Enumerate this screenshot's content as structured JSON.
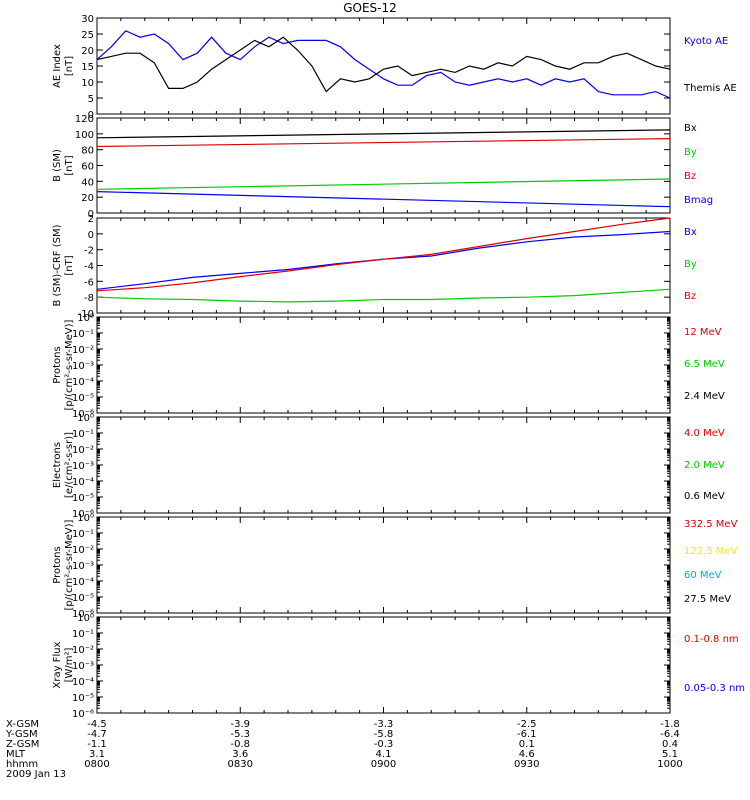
{
  "title": "GOES-12",
  "date": "2009 Jan 13",
  "colors": {
    "black": "#000000",
    "blue": "#0000ee",
    "red": "#dd0000",
    "green": "#00cc00",
    "yellow": "#eeee00",
    "cyan": "#00aaee"
  },
  "footer": {
    "rows": [
      {
        "label": "X-GSM",
        "values": [
          "-4.5",
          "-3.9",
          "-3.3",
          "-2.5",
          "-1.8"
        ]
      },
      {
        "label": "Y-GSM",
        "values": [
          "-4.7",
          "-5.3",
          "-5.8",
          "-6.1",
          "-6.4"
        ]
      },
      {
        "label": "Z-GSM",
        "values": [
          "-1.1",
          "-0.8",
          "-0.3",
          "0.1",
          "0.4"
        ]
      },
      {
        "label": "MLT",
        "values": [
          "3.1",
          "3.6",
          "4.1",
          "4.6",
          "5.1"
        ]
      },
      {
        "label": "hhmm",
        "values": [
          "0800",
          "0830",
          "0900",
          "0930",
          "1000"
        ]
      }
    ]
  },
  "chart_data": [
    {
      "type": "line",
      "ylabel": [
        "AE Index",
        "[nT]"
      ],
      "ylim": [
        0,
        30
      ],
      "yticks": [
        "0",
        "5",
        "10",
        "15",
        "20",
        "25",
        "30"
      ],
      "xlim": [
        0,
        120
      ],
      "series": [
        {
          "name": "Kyoto AE",
          "color": "blue",
          "x": [
            0,
            3,
            6,
            9,
            12,
            15,
            18,
            21,
            24,
            27,
            30,
            33,
            36,
            39,
            42,
            45,
            48,
            51,
            54,
            57,
            60,
            63,
            66,
            69,
            72,
            75,
            78,
            81,
            84,
            87,
            90,
            93,
            96,
            99,
            102,
            105,
            108,
            111,
            114,
            117,
            120
          ],
          "y": [
            17,
            21,
            26,
            24,
            25,
            22,
            17,
            19,
            24,
            19,
            17,
            21,
            24,
            22,
            23,
            23,
            23,
            21,
            17,
            14,
            11,
            9,
            9,
            12,
            13,
            10,
            9,
            10,
            11,
            10,
            11,
            9,
            11,
            10,
            11,
            7,
            6,
            6,
            6,
            7,
            5
          ]
        },
        {
          "name": "Themis AE",
          "color": "black",
          "x": [
            0,
            3,
            6,
            9,
            12,
            15,
            18,
            21,
            24,
            27,
            30,
            33,
            36,
            39,
            42,
            45,
            48,
            51,
            54,
            57,
            60,
            63,
            66,
            69,
            72,
            75,
            78,
            81,
            84,
            87,
            90,
            93,
            96,
            99,
            102,
            105,
            108,
            111,
            114,
            117,
            120
          ],
          "y": [
            17,
            18,
            19,
            19,
            16,
            8,
            8,
            10,
            14,
            17,
            20,
            23,
            21,
            24,
            20,
            15,
            7,
            11,
            10,
            11,
            14,
            15,
            12,
            13,
            14,
            13,
            15,
            14,
            16,
            15,
            18,
            17,
            15,
            14,
            16,
            16,
            18,
            19,
            17,
            15,
            14
          ]
        }
      ]
    },
    {
      "type": "line",
      "ylabel": [
        "B (SM)",
        "[nT]"
      ],
      "ylim": [
        0,
        120
      ],
      "yticks": [
        "0",
        "20",
        "40",
        "60",
        "80",
        "100",
        "120"
      ],
      "xlim": [
        0,
        120
      ],
      "series": [
        {
          "name": "Bx",
          "color": "black",
          "x": [
            0,
            120
          ],
          "y": [
            95,
            105
          ]
        },
        {
          "name": "By",
          "color": "green",
          "x": [
            0,
            120
          ],
          "y": [
            30,
            43
          ]
        },
        {
          "name": "Bz",
          "color": "red",
          "x": [
            0,
            120
          ],
          "y": [
            84,
            94
          ]
        },
        {
          "name": "Bmag",
          "color": "blue",
          "x": [
            0,
            120
          ],
          "y": [
            27,
            8
          ]
        }
      ]
    },
    {
      "type": "line",
      "ylabel": [
        "B (SM)-CRF (SM)",
        "[nT]"
      ],
      "ylim": [
        -10,
        2
      ],
      "yticks": [
        "-10",
        "-8",
        "-6",
        "-4",
        "-2",
        "0",
        "2"
      ],
      "xlim": [
        0,
        120
      ],
      "series": [
        {
          "name": "Bx",
          "color": "blue",
          "x": [
            0,
            10,
            20,
            30,
            40,
            50,
            60,
            70,
            80,
            90,
            100,
            110,
            120
          ],
          "y": [
            -7,
            -6.3,
            -5.5,
            -5,
            -4.5,
            -3.8,
            -3.2,
            -2.8,
            -1.8,
            -1,
            -0.4,
            -0.1,
            0.3
          ]
        },
        {
          "name": "By",
          "color": "green",
          "x": [
            0,
            10,
            20,
            30,
            40,
            50,
            60,
            70,
            80,
            90,
            100,
            110,
            120
          ],
          "y": [
            -8,
            -8.2,
            -8.3,
            -8.5,
            -8.6,
            -8.5,
            -8.3,
            -8.3,
            -8.1,
            -8,
            -7.8,
            -7.4,
            -7
          ]
        },
        {
          "name": "Bz",
          "color": "red",
          "x": [
            0,
            10,
            20,
            30,
            40,
            50,
            60,
            70,
            80,
            90,
            100,
            110,
            120
          ],
          "y": [
            -7.2,
            -6.8,
            -6.2,
            -5.4,
            -4.7,
            -3.9,
            -3.2,
            -2.6,
            -1.6,
            -0.6,
            0.3,
            1.2,
            2
          ]
        }
      ]
    },
    {
      "type": "line",
      "ylabel": [
        "Protons",
        "[p/(cm²-s-sr-MeV)]"
      ],
      "ylim": [
        -6,
        0
      ],
      "log": true,
      "yticks": [
        "10⁰",
        "10⁻¹",
        "10⁻²",
        "10⁻³",
        "10⁻⁴",
        "10⁻⁵",
        "10⁻⁶"
      ],
      "legend": [
        {
          "name": "12 MeV",
          "color": "red"
        },
        {
          "name": "6.5 MeV",
          "color": "green"
        },
        {
          "name": "2.4 MeV",
          "color": "black"
        }
      ]
    },
    {
      "type": "line",
      "ylabel": [
        "Electrons",
        "[e/(cm²-s-sr)]"
      ],
      "ylim": [
        -6,
        0
      ],
      "log": true,
      "yticks": [
        "10⁰",
        "10⁻¹",
        "10⁻²",
        "10⁻³",
        "10⁻⁴",
        "10⁻⁵",
        "10⁻⁶"
      ],
      "legend": [
        {
          "name": "4.0 MeV",
          "color": "red"
        },
        {
          "name": "2.0 MeV",
          "color": "green"
        },
        {
          "name": "0.6 MeV",
          "color": "black"
        }
      ]
    },
    {
      "type": "line",
      "ylabel": [
        "Protons",
        "[p/(cm²-s-sr-MeV)]"
      ],
      "ylim": [
        -6,
        0
      ],
      "log": true,
      "yticks": [
        "10⁰",
        "10⁻¹",
        "10⁻²",
        "10⁻³",
        "10⁻⁴",
        "10⁻⁵",
        "10⁻⁶"
      ],
      "legend": [
        {
          "name": "332.5 MeV",
          "color": "red"
        },
        {
          "name": "122.5 MeV",
          "color": "yellow"
        },
        {
          "name": "60 MeV",
          "color": "cyan"
        },
        {
          "name": "27.5 MeV",
          "color": "black"
        }
      ]
    },
    {
      "type": "line",
      "ylabel": [
        "Xray Flux",
        "[W/m²]"
      ],
      "ylim": [
        -6,
        0
      ],
      "log": true,
      "yticks": [
        "10⁰",
        "10⁻¹",
        "10⁻²",
        "10⁻³",
        "10⁻⁴",
        "10⁻⁵",
        "10⁻⁶"
      ],
      "legend": [
        {
          "name": "0.1-0.8 nm",
          "color": "red"
        },
        {
          "name": "0.05-0.3 nm",
          "color": "blue"
        }
      ]
    }
  ]
}
